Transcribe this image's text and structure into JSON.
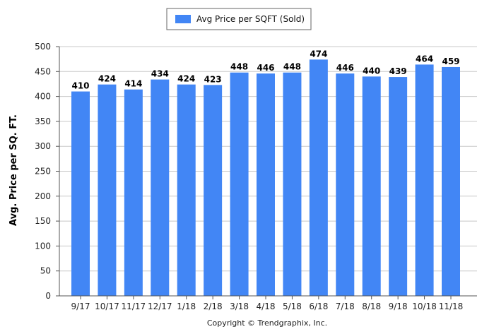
{
  "chart_data": {
    "type": "bar",
    "categories": [
      "9/17",
      "10/17",
      "11/17",
      "12/17",
      "1/18",
      "2/18",
      "3/18",
      "4/18",
      "5/18",
      "6/18",
      "7/18",
      "8/18",
      "9/18",
      "10/18",
      "11/18"
    ],
    "series": [
      {
        "name": "Avg Price per SQFT (Sold)",
        "values": [
          410,
          424,
          414,
          434,
          424,
          423,
          448,
          446,
          448,
          474,
          446,
          440,
          439,
          464,
          459
        ],
        "color": "#4286F5"
      }
    ],
    "data_labels": [
      "410",
      "424",
      "414",
      "434",
      "424",
      "423",
      "448",
      "446",
      "448",
      "474",
      "446",
      "440",
      "439",
      "464",
      "459"
    ],
    "title": "",
    "xlabel": "",
    "ylabel": "Avg. Price per SQ. FT.",
    "ylim": [
      0,
      500
    ],
    "yticks": [
      0,
      50,
      100,
      150,
      200,
      250,
      300,
      350,
      400,
      450,
      500
    ],
    "ytick_labels": [
      "0",
      "50",
      "100",
      "150",
      "200",
      "250",
      "300",
      "350",
      "400",
      "450",
      "500"
    ],
    "grid": "horizontal",
    "legend_position": "top-center",
    "background_color": "#ffffff",
    "grid_color": "#c8c8c8"
  },
  "footer": {
    "copyright": "Copyright © Trendgraphix, Inc."
  }
}
